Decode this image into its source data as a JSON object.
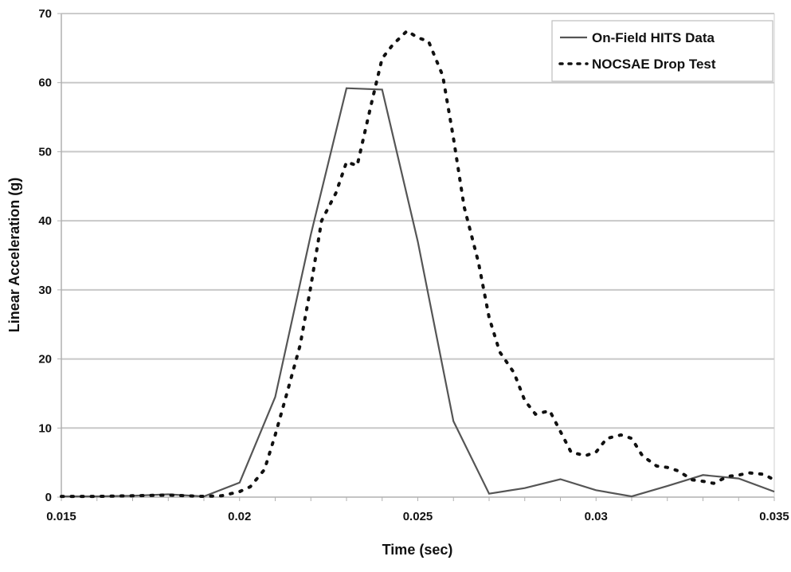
{
  "chart_data": {
    "type": "line",
    "title": "",
    "xlabel": "Time (sec)",
    "ylabel": "Linear Acceleration (g)",
    "xlim": [
      0.015,
      0.035
    ],
    "ylim": [
      0,
      70
    ],
    "x_ticks": [
      "0.015",
      "0.02",
      "0.025",
      "0.03",
      "0.035"
    ],
    "y_ticks": [
      "0",
      "10",
      "20",
      "30",
      "40",
      "50",
      "60",
      "70"
    ],
    "grid": {
      "horizontal": true,
      "vertical": false
    },
    "legend_position": "top-right",
    "series": [
      {
        "name": "On-Field HITS Data",
        "style": "solid",
        "color": "#555555",
        "x": [
          0.015,
          0.016,
          0.017,
          0.018,
          0.019,
          0.02,
          0.021,
          0.022,
          0.023,
          0.024,
          0.025,
          0.026,
          0.027,
          0.028,
          0.029,
          0.03,
          0.031,
          0.032,
          0.033,
          0.034,
          0.035
        ],
        "values": [
          0.1,
          0.1,
          0.2,
          0.4,
          0.1,
          2.1,
          14.5,
          38.0,
          59.2,
          59.0,
          37.0,
          11.0,
          0.5,
          1.3,
          2.6,
          1.0,
          0.1,
          1.6,
          3.2,
          2.7,
          0.8
        ]
      },
      {
        "name": "NOCSAE Drop Test",
        "style": "dotted",
        "color": "#111111",
        "x": [
          0.015,
          0.016,
          0.017,
          0.018,
          0.019,
          0.0195,
          0.02,
          0.0203,
          0.0207,
          0.021,
          0.0213,
          0.0217,
          0.022,
          0.0223,
          0.0227,
          0.023,
          0.0233,
          0.0237,
          0.024,
          0.0243,
          0.0247,
          0.025,
          0.0253,
          0.0257,
          0.026,
          0.0263,
          0.0267,
          0.027,
          0.0273,
          0.0277,
          0.028,
          0.0283,
          0.0287,
          0.029,
          0.0293,
          0.0297,
          0.03,
          0.0303,
          0.0307,
          0.031,
          0.0313,
          0.0317,
          0.032,
          0.0323,
          0.0327,
          0.033,
          0.0333,
          0.0337,
          0.034,
          0.0343,
          0.0347,
          0.035
        ],
        "values": [
          0.1,
          0.1,
          0.2,
          0.3,
          0.1,
          0.2,
          0.8,
          1.5,
          4.0,
          9.0,
          14.5,
          22.0,
          30.5,
          40.0,
          44.0,
          48.5,
          48.0,
          57.0,
          63.5,
          65.5,
          67.5,
          66.5,
          66.0,
          61.0,
          52.0,
          42.0,
          34.0,
          26.0,
          21.0,
          18.0,
          14.0,
          12.0,
          12.5,
          9.5,
          6.5,
          6.0,
          6.5,
          8.5,
          9.0,
          8.5,
          6.0,
          4.5,
          4.3,
          3.8,
          2.5,
          2.3,
          2.0,
          3.0,
          3.2,
          3.5,
          3.3,
          2.5
        ]
      }
    ]
  },
  "legend": {
    "items": [
      {
        "label": "On-Field HITS Data",
        "style": "solid"
      },
      {
        "label": "NOCSAE Drop Test",
        "style": "dotted"
      }
    ]
  },
  "axes": {
    "x_title": "Time (sec)",
    "y_title": "Linear Acceleration (g)"
  },
  "colors": {
    "gridline": "#c8c8c8",
    "axis": "#b0b0b0",
    "hits_line": "#555555",
    "drop_test": "#111111",
    "legend_border": "#bdbdbd"
  }
}
